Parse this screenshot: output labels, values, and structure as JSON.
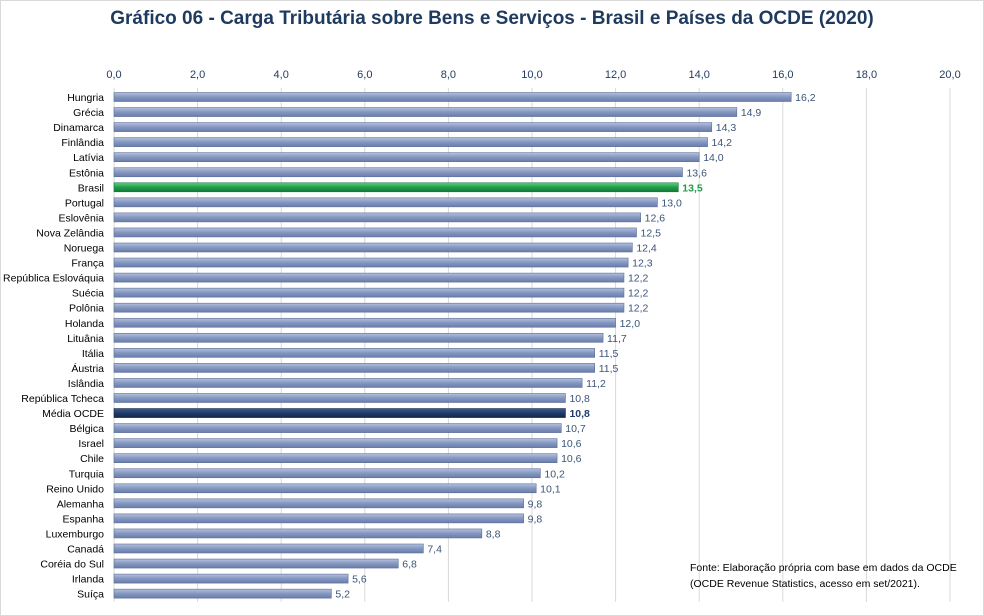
{
  "chart_data": {
    "type": "bar",
    "orientation": "horizontal",
    "title": "Gráfico 06 - Carga Tributária sobre Bens e Serviços - Brasil e Países da OCDE (2020)",
    "categories": [
      "Hungria",
      "Grécia",
      "Dinamarca",
      "Finlândia",
      "Latívia",
      "Estônia",
      "Brasil",
      "Portugal",
      "Eslovênia",
      "Nova Zelândia",
      "Noruega",
      "França",
      "República Eslováquia",
      "Suécia",
      "Polônia",
      "Holanda",
      "Lituânia",
      "Itália",
      "Áustria",
      "Islândia",
      "República Tcheca",
      "Média OCDE",
      "Bélgica",
      "Israel",
      "Chile",
      "Turquia",
      "Reino Unido",
      "Alemanha",
      "Espanha",
      "Luxemburgo",
      "Canadá",
      "Coréia do Sul",
      "Irlanda",
      "Suíça"
    ],
    "values": [
      16.2,
      14.9,
      14.3,
      14.2,
      14.0,
      13.6,
      13.5,
      13.0,
      12.6,
      12.5,
      12.4,
      12.3,
      12.2,
      12.2,
      12.2,
      12.0,
      11.7,
      11.5,
      11.5,
      11.2,
      10.8,
      10.8,
      10.7,
      10.6,
      10.6,
      10.2,
      10.1,
      9.8,
      9.8,
      8.8,
      7.4,
      6.8,
      5.6,
      5.2
    ],
    "value_labels": [
      "16,2",
      "14,9",
      "14,3",
      "14,2",
      "14,0",
      "13,6",
      "13,5",
      "13,0",
      "12,6",
      "12,5",
      "12,4",
      "12,3",
      "12,2",
      "12,2",
      "12,2",
      "12,0",
      "11,7",
      "11,5",
      "11,5",
      "11,2",
      "10,8",
      "10,8",
      "10,7",
      "10,6",
      "10,6",
      "10,2",
      "10,1",
      "9,8",
      "9,8",
      "8,8",
      "7,4",
      "6,8",
      "5,6",
      "5,2"
    ],
    "xlim": [
      0,
      20
    ],
    "xticks": [
      0,
      2,
      4,
      6,
      8,
      10,
      12,
      14,
      16,
      18,
      20
    ],
    "xtick_labels": [
      "0,0",
      "2,0",
      "4,0",
      "6,0",
      "8,0",
      "10,0",
      "12,0",
      "14,0",
      "16,0",
      "18,0",
      "20,0"
    ],
    "xaxis_position": "top",
    "grid": true,
    "highlights": {
      "Brasil": "#1e9e4a",
      "Média OCDE": "#1f3a6b"
    },
    "colors": {
      "bar": "#8497c0",
      "bar_edge": "#5d6f97",
      "label": "#3b5478",
      "tick": "#1f3a5f",
      "grid": "#d9d9d9"
    }
  },
  "source_note": "Fonte:  Elaboração própria com base em dados da OCDE (OCDE Revenue Statistics, acesso em set/2021)."
}
